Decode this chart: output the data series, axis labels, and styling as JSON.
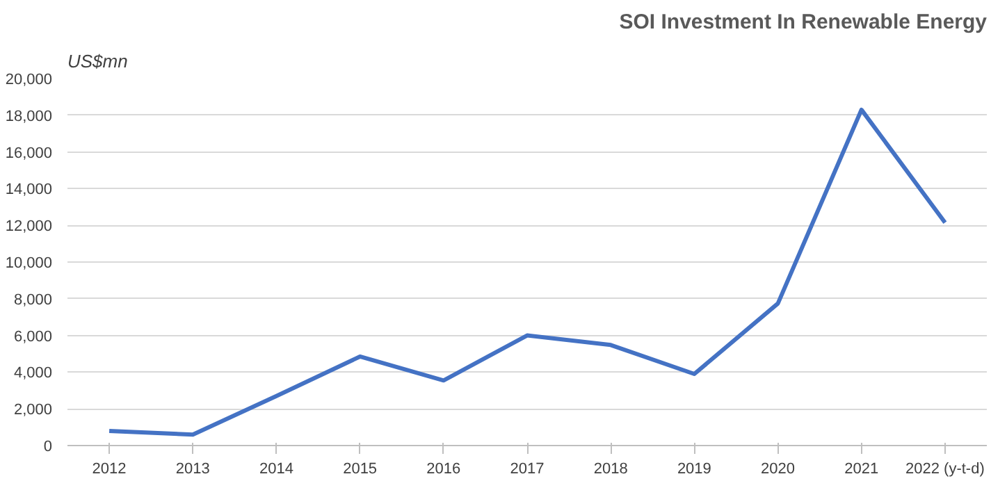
{
  "chart_data": {
    "type": "line",
    "title": "SOI Investment In Renewable Energy",
    "ylabel": "US$mn",
    "categories": [
      "2012",
      "2013",
      "2014",
      "2015",
      "2016",
      "2017",
      "2018",
      "2019",
      "2020",
      "2021",
      "2022 (y-t-d)"
    ],
    "series": [
      {
        "color": "#4472c4",
        "values": [
          800,
          600,
          2700,
          4850,
          3550,
          6000,
          5480,
          3900,
          7740,
          18300,
          12150
        ]
      }
    ],
    "ylim": [
      0,
      20000
    ],
    "yticks": [
      {
        "value": 0,
        "label": "0"
      },
      {
        "value": 2000,
        "label": "2,000"
      },
      {
        "value": 4000,
        "label": "4,000"
      },
      {
        "value": 6000,
        "label": "6,000"
      },
      {
        "value": 8000,
        "label": "8,000"
      },
      {
        "value": 10000,
        "label": "10,000"
      },
      {
        "value": 12000,
        "label": "12,000"
      },
      {
        "value": 14000,
        "label": "14,000"
      },
      {
        "value": 16000,
        "label": "16,000"
      },
      {
        "value": 18000,
        "label": "18,000"
      },
      {
        "value": 20000,
        "label": "20,000"
      }
    ],
    "grid": "y",
    "marker": "none",
    "line_style": "solid"
  }
}
